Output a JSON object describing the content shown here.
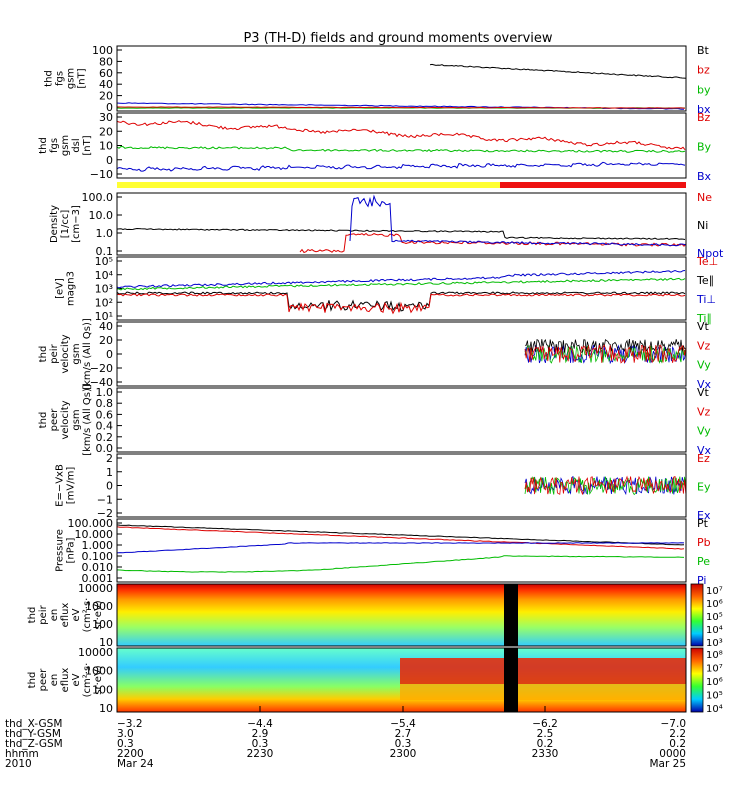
{
  "title": "P3 (TH-D) fields and ground moments overview",
  "chart_data": {
    "type": "line",
    "x_range": [
      "2200",
      "0000"
    ],
    "panels": [
      {
        "ylabel": [
          "thd",
          "fgs",
          "gsm",
          "[nT]"
        ],
        "yticks": [
          "100",
          "80",
          "60",
          "40",
          "20",
          "0"
        ],
        "ylim": [
          0,
          105
        ],
        "legend": [
          {
            "text": "Bt",
            "color": "#000000"
          },
          {
            "text": "bz",
            "color": "#dd0000"
          },
          {
            "text": "by",
            "color": "#00bb00"
          },
          {
            "text": "bx",
            "color": "#0000cc"
          }
        ]
      },
      {
        "ylabel": [
          "thd",
          "fgs",
          "gsm",
          "dsl",
          "[nT]"
        ],
        "yticks": [
          "30",
          "20",
          "10",
          "0",
          "−10"
        ],
        "ylim": [
          -15,
          30
        ],
        "legend": [
          {
            "text": "Bz",
            "color": "#dd0000"
          },
          {
            "text": "By",
            "color": "#00bb00"
          },
          {
            "text": "Bx",
            "color": "#0000cc"
          }
        ]
      },
      {
        "ylabel": [
          "Density",
          "[1/cc]",
          "[cm−3]"
        ],
        "yticks": [
          "100.0",
          "10.0",
          "1.0",
          "0.1"
        ],
        "ylim": [
          0.05,
          200
        ],
        "legend": [
          {
            "text": "Ne",
            "color": "#dd0000"
          },
          {
            "text": "Ni",
            "color": "#000000"
          },
          {
            "text": "Npot",
            "color": "#0000cc"
          }
        ]
      },
      {
        "ylabel": [
          "[eV]",
          "magn3"
        ],
        "yticks": [
          "10⁵",
          "10⁴",
          "10³",
          "10²",
          "10¹"
        ],
        "ylim": [
          10,
          100000
        ],
        "legend": [
          {
            "text": "Te⊥",
            "color": "#dd0000"
          },
          {
            "text": "Te∥",
            "color": "#000000"
          },
          {
            "text": "Ti⊥",
            "color": "#0000cc"
          },
          {
            "text": "Ti∥",
            "color": "#00bb00"
          }
        ]
      },
      {
        "ylabel": [
          "thd",
          "peir",
          "velocity",
          "gsm",
          "[km/s (All Qs)]"
        ],
        "yticks": [
          "40",
          "20",
          "0",
          "−20",
          "−40"
        ],
        "ylim": [
          -50,
          50
        ],
        "legend": [
          {
            "text": "Vt",
            "color": "#000000"
          },
          {
            "text": "Vz",
            "color": "#dd0000"
          },
          {
            "text": "Vy",
            "color": "#00bb00"
          },
          {
            "text": "Vx",
            "color": "#0000cc"
          }
        ]
      },
      {
        "ylabel": [
          "thd",
          "peer",
          "velocity",
          "gsm",
          "[km/s (All Qs)]"
        ],
        "yticks": [
          "1.0",
          "0.8",
          "0.6",
          "0.4",
          "0.2",
          "0.0"
        ],
        "ylim": [
          0,
          1
        ],
        "legend": [
          {
            "text": "Vt",
            "color": "#000000"
          },
          {
            "text": "Vz",
            "color": "#dd0000"
          },
          {
            "text": "Vy",
            "color": "#00bb00"
          },
          {
            "text": "Vx",
            "color": "#0000cc"
          }
        ]
      },
      {
        "ylabel": [
          "E=−VxB",
          "[mV/m]"
        ],
        "yticks": [
          "2",
          "1",
          "0",
          "−1",
          "−2"
        ],
        "ylim": [
          -2.5,
          2.5
        ],
        "legend": [
          {
            "text": "Ez",
            "color": "#dd0000"
          },
          {
            "text": "Ey",
            "color": "#00bb00"
          },
          {
            "text": "Ex",
            "color": "#0000cc"
          }
        ]
      },
      {
        "ylabel": [
          "Pressure",
          "[nPa]"
        ],
        "yticks": [
          "100.000",
          "10.000",
          "1.000",
          "0.100",
          "0.010",
          "0.001"
        ],
        "ylim": [
          0.001,
          200
        ],
        "legend": [
          {
            "text": "Pt",
            "color": "#000000"
          },
          {
            "text": "Pb",
            "color": "#dd0000"
          },
          {
            "text": "Pe",
            "color": "#00bb00"
          },
          {
            "text": "Pi",
            "color": "#0000cc"
          }
        ]
      },
      {
        "ylabel": [
          "thd",
          "peir",
          "en",
          "eflux",
          "eV",
          "(cm²·s·",
          "sr·eV)"
        ],
        "yticks": [
          "10000",
          "1000",
          "100",
          "10"
        ],
        "colorbar": [
          "10⁷",
          "10⁶",
          "10⁵",
          "10⁴",
          "10³"
        ]
      },
      {
        "ylabel": [
          "thd",
          "peer",
          "en",
          "eflux",
          "eV",
          "(cm²·s·",
          "sr·eV)"
        ],
        "yticks": [
          "10000",
          "1000",
          "100",
          "10"
        ],
        "colorbar": [
          "10⁸",
          "10⁷",
          "10⁶",
          "10⁵",
          "10⁴"
        ]
      }
    ],
    "ephemeris": {
      "labels": [
        "thd_X-GSM",
        "thd_Y-GSM",
        "thd_Z-GSM",
        "hhmm",
        "2010"
      ],
      "columns": [
        [
          "−3.2",
          "3.0",
          "0.3",
          "2200",
          "Mar 24"
        ],
        [
          "−4.4",
          "2.9",
          "0.3",
          "2230",
          ""
        ],
        [
          "−5.4",
          "2.7",
          "0.3",
          "2300",
          ""
        ],
        [
          "−6.2",
          "2.5",
          "0.2",
          "2330",
          ""
        ],
        [
          "−7.0",
          "2.2",
          "0.2",
          "0000",
          "Mar 25"
        ]
      ]
    }
  }
}
